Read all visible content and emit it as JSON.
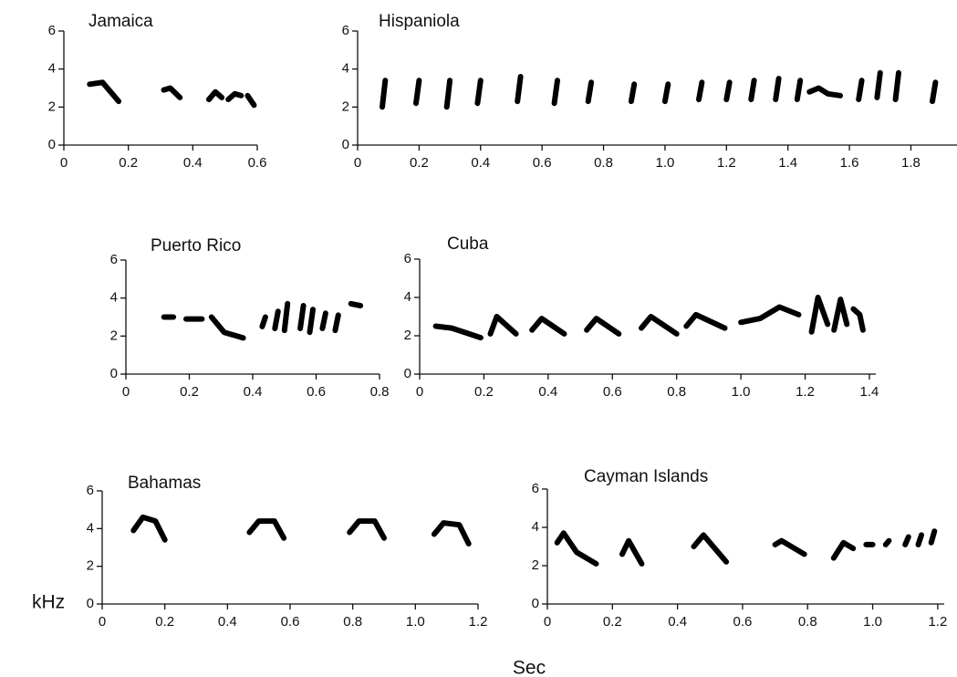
{
  "chart_data": [
    {
      "type": "spectrogram",
      "title": "Jamaica",
      "xlim": [
        0,
        0.6
      ],
      "xticks": [
        0,
        0.2,
        0.4,
        0.6
      ],
      "ylim": [
        0,
        6
      ],
      "yticks": [
        0,
        2,
        4,
        6
      ],
      "syllables": [
        {
          "x": [
            0.08,
            0.12,
            0.17
          ],
          "y": [
            3.2,
            3.3,
            2.3
          ]
        },
        {
          "x": [
            0.31,
            0.33,
            0.36
          ],
          "y": [
            2.9,
            3.0,
            2.5
          ]
        },
        {
          "x": [
            0.45,
            0.47,
            0.49
          ],
          "y": [
            2.4,
            2.8,
            2.5
          ]
        },
        {
          "x": [
            0.51,
            0.53,
            0.55
          ],
          "y": [
            2.4,
            2.7,
            2.6
          ]
        },
        {
          "x": [
            0.57,
            0.59
          ],
          "y": [
            2.6,
            2.1
          ]
        }
      ]
    },
    {
      "type": "spectrogram",
      "title": "Hispaniola",
      "xlim": [
        0,
        1.95
      ],
      "xticks": [
        0,
        0.2,
        0.4,
        0.6,
        0.8,
        {
          "value": 1,
          "label": "1.0"
        },
        1.2,
        1.4,
        1.6,
        1.8
      ],
      "ylim": [
        0,
        6
      ],
      "yticks": [
        0,
        2,
        4,
        6
      ],
      "syllables": [
        {
          "x": [
            0.08,
            0.09
          ],
          "y": [
            2.0,
            3.4
          ]
        },
        {
          "x": [
            0.19,
            0.2
          ],
          "y": [
            2.2,
            3.4
          ]
        },
        {
          "x": [
            0.29,
            0.3
          ],
          "y": [
            2.0,
            3.4
          ]
        },
        {
          "x": [
            0.39,
            0.4
          ],
          "y": [
            2.2,
            3.4
          ]
        },
        {
          "x": [
            0.52,
            0.53
          ],
          "y": [
            2.3,
            3.6
          ]
        },
        {
          "x": [
            0.64,
            0.65
          ],
          "y": [
            2.2,
            3.4
          ]
        },
        {
          "x": [
            0.75,
            0.76
          ],
          "y": [
            2.3,
            3.3
          ]
        },
        {
          "x": [
            0.89,
            0.9
          ],
          "y": [
            2.3,
            3.2
          ]
        },
        {
          "x": [
            1.0,
            1.01
          ],
          "y": [
            2.3,
            3.2
          ]
        },
        {
          "x": [
            1.11,
            1.12
          ],
          "y": [
            2.4,
            3.3
          ]
        },
        {
          "x": [
            1.2,
            1.21
          ],
          "y": [
            2.4,
            3.3
          ]
        },
        {
          "x": [
            1.28,
            1.29
          ],
          "y": [
            2.4,
            3.4
          ]
        },
        {
          "x": [
            1.36,
            1.37
          ],
          "y": [
            2.4,
            3.5
          ]
        },
        {
          "x": [
            1.43,
            1.44
          ],
          "y": [
            2.4,
            3.4
          ]
        },
        {
          "x": [
            1.47,
            1.5,
            1.53,
            1.57
          ],
          "y": [
            2.8,
            3.0,
            2.7,
            2.6
          ]
        },
        {
          "x": [
            1.63,
            1.64
          ],
          "y": [
            2.4,
            3.4
          ]
        },
        {
          "x": [
            1.69,
            1.7
          ],
          "y": [
            2.5,
            3.8
          ]
        },
        {
          "x": [
            1.75,
            1.76
          ],
          "y": [
            2.4,
            3.8
          ]
        },
        {
          "x": [
            1.87,
            1.88
          ],
          "y": [
            2.3,
            3.3
          ]
        }
      ]
    },
    {
      "type": "spectrogram",
      "title": "Puerto Rico",
      "xlim": [
        0,
        0.8
      ],
      "xticks": [
        0,
        0.2,
        0.4,
        0.6,
        0.8
      ],
      "ylim": [
        0,
        6
      ],
      "yticks": [
        0,
        2,
        4,
        6
      ],
      "syllables": [
        {
          "x": [
            0.12,
            0.15
          ],
          "y": [
            3.0,
            3.0
          ]
        },
        {
          "x": [
            0.19,
            0.24
          ],
          "y": [
            2.9,
            2.9
          ]
        },
        {
          "x": [
            0.27,
            0.31,
            0.37
          ],
          "y": [
            3.0,
            2.2,
            1.9
          ]
        },
        {
          "x": [
            0.43,
            0.44
          ],
          "y": [
            2.5,
            3.0
          ]
        },
        {
          "x": [
            0.47,
            0.48
          ],
          "y": [
            2.4,
            3.3
          ]
        },
        {
          "x": [
            0.5,
            0.51
          ],
          "y": [
            2.3,
            3.7
          ]
        },
        {
          "x": [
            0.55,
            0.56
          ],
          "y": [
            2.4,
            3.6
          ]
        },
        {
          "x": [
            0.58,
            0.59
          ],
          "y": [
            2.2,
            3.4
          ]
        },
        {
          "x": [
            0.62,
            0.63
          ],
          "y": [
            2.4,
            3.2
          ]
        },
        {
          "x": [
            0.66,
            0.67
          ],
          "y": [
            2.3,
            3.1
          ]
        },
        {
          "x": [
            0.71,
            0.74
          ],
          "y": [
            3.7,
            3.6
          ]
        }
      ]
    },
    {
      "type": "spectrogram",
      "title": "Cuba",
      "xlim": [
        0,
        1.42
      ],
      "xticks": [
        0,
        0.2,
        0.4,
        0.6,
        0.8,
        {
          "value": 1,
          "label": "1.0"
        },
        1.2,
        1.4
      ],
      "ylim": [
        0,
        6
      ],
      "yticks": [
        0,
        2,
        4,
        6
      ],
      "syllables": [
        {
          "x": [
            0.05,
            0.1,
            0.19
          ],
          "y": [
            2.5,
            2.4,
            1.9
          ]
        },
        {
          "x": [
            0.22,
            0.24,
            0.3
          ],
          "y": [
            2.1,
            3.0,
            2.1
          ]
        },
        {
          "x": [
            0.35,
            0.38,
            0.45
          ],
          "y": [
            2.3,
            2.9,
            2.1
          ]
        },
        {
          "x": [
            0.52,
            0.55,
            0.62
          ],
          "y": [
            2.3,
            2.9,
            2.1
          ]
        },
        {
          "x": [
            0.69,
            0.72,
            0.8
          ],
          "y": [
            2.4,
            3.0,
            2.1
          ]
        },
        {
          "x": [
            0.83,
            0.86,
            0.95
          ],
          "y": [
            2.5,
            3.1,
            2.4
          ]
        },
        {
          "x": [
            1.0,
            1.06,
            1.12,
            1.18
          ],
          "y": [
            2.7,
            2.9,
            3.5,
            3.1
          ]
        },
        {
          "x": [
            1.22,
            1.24,
            1.27
          ],
          "y": [
            2.2,
            4.0,
            2.6
          ]
        },
        {
          "x": [
            1.29,
            1.31,
            1.33
          ],
          "y": [
            2.3,
            3.9,
            2.6
          ]
        },
        {
          "x": [
            1.35,
            1.37,
            1.38
          ],
          "y": [
            3.4,
            3.1,
            2.3
          ]
        }
      ]
    },
    {
      "type": "spectrogram",
      "title": "Bahamas",
      "xlim": [
        0,
        1.2
      ],
      "xticks": [
        0,
        0.2,
        0.4,
        0.6,
        0.8,
        {
          "value": 1,
          "label": "1.0"
        },
        1.2
      ],
      "ylim": [
        0,
        6
      ],
      "yticks": [
        0,
        2,
        4,
        6
      ],
      "syllables": [
        {
          "x": [
            0.1,
            0.13,
            0.17,
            0.2
          ],
          "y": [
            3.9,
            4.6,
            4.4,
            3.4
          ]
        },
        {
          "x": [
            0.47,
            0.5,
            0.55,
            0.58
          ],
          "y": [
            3.8,
            4.4,
            4.4,
            3.5
          ]
        },
        {
          "x": [
            0.79,
            0.82,
            0.87,
            0.9
          ],
          "y": [
            3.8,
            4.4,
            4.4,
            3.5
          ]
        },
        {
          "x": [
            1.06,
            1.09,
            1.14,
            1.17
          ],
          "y": [
            3.7,
            4.3,
            4.2,
            3.2
          ]
        }
      ]
    },
    {
      "type": "spectrogram",
      "title": "Cayman Islands",
      "xlim": [
        0,
        1.22
      ],
      "xticks": [
        0,
        0.2,
        0.4,
        0.6,
        0.8,
        {
          "value": 1,
          "label": "1.0"
        },
        1.2
      ],
      "ylim": [
        0,
        6
      ],
      "yticks": [
        0,
        2,
        4,
        6
      ],
      "syllables": [
        {
          "x": [
            0.03,
            0.05,
            0.09,
            0.15
          ],
          "y": [
            3.2,
            3.7,
            2.7,
            2.1
          ]
        },
        {
          "x": [
            0.23,
            0.25,
            0.29
          ],
          "y": [
            2.6,
            3.3,
            2.1
          ]
        },
        {
          "x": [
            0.45,
            0.48,
            0.55
          ],
          "y": [
            3.0,
            3.6,
            2.2
          ]
        },
        {
          "x": [
            0.7,
            0.72,
            0.79
          ],
          "y": [
            3.1,
            3.3,
            2.6
          ]
        },
        {
          "x": [
            0.88,
            0.91,
            0.94
          ],
          "y": [
            2.4,
            3.2,
            2.9
          ]
        },
        {
          "x": [
            0.98,
            1.0
          ],
          "y": [
            3.1,
            3.1
          ]
        },
        {
          "x": [
            1.04,
            1.05
          ],
          "y": [
            3.1,
            3.3
          ]
        },
        {
          "x": [
            1.1,
            1.11
          ],
          "y": [
            3.1,
            3.5
          ]
        },
        {
          "x": [
            1.14,
            1.15
          ],
          "y": [
            3.1,
            3.6
          ]
        },
        {
          "x": [
            1.18,
            1.19
          ],
          "y": [
            3.2,
            3.8
          ]
        }
      ]
    }
  ],
  "ylabel": "kHz",
  "xlabel": "Sec"
}
